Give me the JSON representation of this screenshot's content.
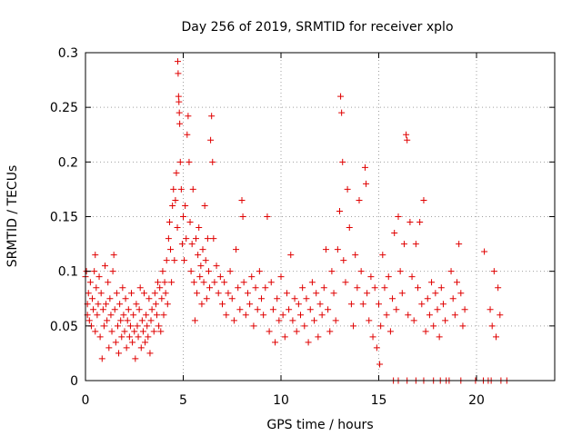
{
  "chart_data": {
    "type": "scatter",
    "title": "Day 256 of 2019, SRMTID for receiver xplo",
    "xlabel": "GPS time / hours",
    "ylabel": "SRMTID / TECUs",
    "xlim": [
      0,
      24
    ],
    "ylim": [
      0,
      0.3
    ],
    "xticks": [
      0,
      5,
      10,
      15,
      20
    ],
    "xtick_labels": [
      "0",
      "5",
      "10",
      "15",
      "20"
    ],
    "yticks": [
      0,
      0.05,
      0.1,
      0.15,
      0.2,
      0.25,
      0.3
    ],
    "ytick_labels": [
      "0",
      "0.05",
      "0.1",
      "0.15",
      "0.2",
      "0.25",
      "0.3"
    ],
    "grid": true,
    "legend": "none",
    "marker": "+",
    "color": "#e00000",
    "series": [
      {
        "points": [
          [
            0.0,
            0.095
          ],
          [
            0.05,
            0.1
          ],
          [
            0.1,
            0.07
          ],
          [
            0.1,
            0.06
          ],
          [
            0.15,
            0.08
          ],
          [
            0.2,
            0.055
          ],
          [
            0.25,
            0.09
          ],
          [
            0.3,
            0.05
          ],
          [
            0.35,
            0.075
          ],
          [
            0.4,
            0.065
          ],
          [
            0.45,
            0.1
          ],
          [
            0.5,
            0.115
          ],
          [
            0.5,
            0.045
          ],
          [
            0.55,
            0.085
          ],
          [
            0.6,
            0.06
          ],
          [
            0.65,
            0.07
          ],
          [
            0.7,
            0.095
          ],
          [
            0.75,
            0.04
          ],
          [
            0.8,
            0.08
          ],
          [
            0.85,
            0.02
          ],
          [
            0.9,
            0.065
          ],
          [
            0.95,
            0.05
          ],
          [
            1.0,
            0.105
          ],
          [
            1.05,
            0.07
          ],
          [
            1.1,
            0.055
          ],
          [
            1.15,
            0.09
          ],
          [
            1.2,
            0.03
          ],
          [
            1.25,
            0.075
          ],
          [
            1.3,
            0.06
          ],
          [
            1.35,
            0.045
          ],
          [
            1.4,
            0.1
          ],
          [
            1.45,
            0.115
          ],
          [
            1.5,
            0.065
          ],
          [
            1.55,
            0.035
          ],
          [
            1.6,
            0.08
          ],
          [
            1.65,
            0.05
          ],
          [
            1.7,
            0.025
          ],
          [
            1.75,
            0.07
          ],
          [
            1.8,
            0.055
          ],
          [
            1.85,
            0.04
          ],
          [
            1.9,
            0.085
          ],
          [
            1.95,
            0.06
          ],
          [
            2.0,
            0.045
          ],
          [
            2.05,
            0.075
          ],
          [
            2.1,
            0.03
          ],
          [
            2.15,
            0.055
          ],
          [
            2.2,
            0.065
          ],
          [
            2.25,
            0.04
          ],
          [
            2.3,
            0.05
          ],
          [
            2.35,
            0.08
          ],
          [
            2.4,
            0.035
          ],
          [
            2.45,
            0.06
          ],
          [
            2.5,
            0.045
          ],
          [
            2.55,
            0.02
          ],
          [
            2.6,
            0.07
          ],
          [
            2.65,
            0.05
          ],
          [
            2.7,
            0.04
          ],
          [
            2.75,
            0.065
          ],
          [
            2.8,
            0.085
          ],
          [
            2.85,
            0.03
          ],
          [
            2.9,
            0.055
          ],
          [
            2.95,
            0.045
          ],
          [
            3.0,
            0.08
          ],
          [
            3.05,
            0.035
          ],
          [
            3.1,
            0.06
          ],
          [
            3.15,
            0.05
          ],
          [
            3.2,
            0.04
          ],
          [
            3.25,
            0.075
          ],
          [
            3.3,
            0.025
          ],
          [
            3.35,
            0.055
          ],
          [
            3.4,
            0.065
          ],
          [
            3.5,
            0.045
          ],
          [
            3.55,
            0.08
          ],
          [
            3.6,
            0.07
          ],
          [
            3.65,
            0.06
          ],
          [
            3.7,
            0.09
          ],
          [
            3.75,
            0.05
          ],
          [
            3.8,
            0.085
          ],
          [
            3.85,
            0.045
          ],
          [
            3.9,
            0.075
          ],
          [
            3.95,
            0.1
          ],
          [
            4.0,
            0.06
          ],
          [
            4.05,
            0.09
          ],
          [
            4.1,
            0.08
          ],
          [
            4.15,
            0.11
          ],
          [
            4.2,
            0.07
          ],
          [
            4.25,
            0.13
          ],
          [
            4.3,
            0.145
          ],
          [
            4.35,
            0.12
          ],
          [
            4.4,
            0.09
          ],
          [
            4.45,
            0.16
          ],
          [
            4.5,
            0.175
          ],
          [
            4.55,
            0.11
          ],
          [
            4.6,
            0.165
          ],
          [
            4.65,
            0.19
          ],
          [
            4.7,
            0.14
          ],
          [
            4.72,
            0.292
          ],
          [
            4.74,
            0.281
          ],
          [
            4.76,
            0.26
          ],
          [
            4.78,
            0.255
          ],
          [
            4.8,
            0.245
          ],
          [
            4.82,
            0.235
          ],
          [
            4.85,
            0.2
          ],
          [
            4.9,
            0.175
          ],
          [
            4.95,
            0.125
          ],
          [
            5.0,
            0.15
          ],
          [
            5.05,
            0.11
          ],
          [
            5.1,
            0.16
          ],
          [
            5.15,
            0.13
          ],
          [
            5.2,
            0.225
          ],
          [
            5.25,
            0.242
          ],
          [
            5.3,
            0.2
          ],
          [
            5.35,
            0.145
          ],
          [
            5.4,
            0.1
          ],
          [
            5.45,
            0.125
          ],
          [
            5.5,
            0.175
          ],
          [
            5.55,
            0.09
          ],
          [
            5.6,
            0.055
          ],
          [
            5.65,
            0.13
          ],
          [
            5.7,
            0.08
          ],
          [
            5.75,
            0.115
          ],
          [
            5.8,
            0.14
          ],
          [
            5.85,
            0.095
          ],
          [
            5.9,
            0.105
          ],
          [
            5.95,
            0.07
          ],
          [
            6.0,
            0.12
          ],
          [
            6.05,
            0.09
          ],
          [
            6.1,
            0.16
          ],
          [
            6.15,
            0.11
          ],
          [
            6.2,
            0.075
          ],
          [
            6.25,
            0.13
          ],
          [
            6.3,
            0.1
          ],
          [
            6.35,
            0.085
          ],
          [
            6.4,
            0.22
          ],
          [
            6.45,
            0.242
          ],
          [
            6.5,
            0.2
          ],
          [
            6.55,
            0.13
          ],
          [
            6.6,
            0.09
          ],
          [
            6.7,
            0.105
          ],
          [
            6.8,
            0.08
          ],
          [
            6.9,
            0.095
          ],
          [
            7.0,
            0.07
          ],
          [
            7.1,
            0.09
          ],
          [
            7.2,
            0.06
          ],
          [
            7.3,
            0.08
          ],
          [
            7.4,
            0.1
          ],
          [
            7.5,
            0.075
          ],
          [
            7.6,
            0.055
          ],
          [
            7.7,
            0.12
          ],
          [
            7.8,
            0.085
          ],
          [
            7.9,
            0.065
          ],
          [
            8.0,
            0.165
          ],
          [
            8.05,
            0.15
          ],
          [
            8.1,
            0.09
          ],
          [
            8.2,
            0.06
          ],
          [
            8.3,
            0.08
          ],
          [
            8.4,
            0.07
          ],
          [
            8.5,
            0.095
          ],
          [
            8.6,
            0.05
          ],
          [
            8.7,
            0.085
          ],
          [
            8.8,
            0.065
          ],
          [
            8.9,
            0.1
          ],
          [
            9.0,
            0.075
          ],
          [
            9.1,
            0.06
          ],
          [
            9.2,
            0.085
          ],
          [
            9.3,
            0.15
          ],
          [
            9.4,
            0.045
          ],
          [
            9.5,
            0.09
          ],
          [
            9.6,
            0.065
          ],
          [
            9.7,
            0.035
          ],
          [
            9.8,
            0.075
          ],
          [
            9.9,
            0.055
          ],
          [
            10.0,
            0.095
          ],
          [
            10.1,
            0.06
          ],
          [
            10.2,
            0.04
          ],
          [
            10.3,
            0.08
          ],
          [
            10.4,
            0.065
          ],
          [
            10.5,
            0.115
          ],
          [
            10.6,
            0.055
          ],
          [
            10.7,
            0.075
          ],
          [
            10.8,
            0.045
          ],
          [
            10.9,
            0.07
          ],
          [
            11.0,
            0.06
          ],
          [
            11.1,
            0.085
          ],
          [
            11.2,
            0.05
          ],
          [
            11.3,
            0.075
          ],
          [
            11.4,
            0.035
          ],
          [
            11.5,
            0.065
          ],
          [
            11.6,
            0.09
          ],
          [
            11.7,
            0.055
          ],
          [
            11.8,
            0.08
          ],
          [
            11.9,
            0.04
          ],
          [
            12.0,
            0.07
          ],
          [
            12.1,
            0.06
          ],
          [
            12.2,
            0.085
          ],
          [
            12.3,
            0.12
          ],
          [
            12.4,
            0.065
          ],
          [
            12.5,
            0.045
          ],
          [
            12.6,
            0.1
          ],
          [
            12.7,
            0.08
          ],
          [
            12.8,
            0.055
          ],
          [
            12.9,
            0.12
          ],
          [
            13.0,
            0.155
          ],
          [
            13.05,
            0.26
          ],
          [
            13.1,
            0.245
          ],
          [
            13.15,
            0.2
          ],
          [
            13.2,
            0.11
          ],
          [
            13.3,
            0.09
          ],
          [
            13.4,
            0.175
          ],
          [
            13.5,
            0.14
          ],
          [
            13.6,
            0.07
          ],
          [
            13.7,
            0.05
          ],
          [
            13.8,
            0.115
          ],
          [
            13.9,
            0.085
          ],
          [
            14.0,
            0.165
          ],
          [
            14.1,
            0.1
          ],
          [
            14.2,
            0.07
          ],
          [
            14.3,
            0.195
          ],
          [
            14.35,
            0.18
          ],
          [
            14.4,
            0.08
          ],
          [
            14.5,
            0.055
          ],
          [
            14.6,
            0.095
          ],
          [
            14.7,
            0.04
          ],
          [
            14.8,
            0.085
          ],
          [
            14.9,
            0.03
          ],
          [
            15.0,
            0.07
          ],
          [
            15.05,
            0.015
          ],
          [
            15.1,
            0.05
          ],
          [
            15.2,
            0.115
          ],
          [
            15.3,
            0.085
          ],
          [
            15.4,
            0.06
          ],
          [
            15.5,
            0.095
          ],
          [
            15.6,
            0.045
          ],
          [
            15.7,
            0.075
          ],
          [
            15.8,
            0.135
          ],
          [
            15.9,
            0.065
          ],
          [
            16.0,
            0.15
          ],
          [
            16.1,
            0.1
          ],
          [
            16.2,
            0.08
          ],
          [
            16.3,
            0.125
          ],
          [
            16.4,
            0.225
          ],
          [
            16.45,
            0.22
          ],
          [
            16.5,
            0.06
          ],
          [
            16.6,
            0.145
          ],
          [
            16.7,
            0.095
          ],
          [
            16.8,
            0.055
          ],
          [
            16.9,
            0.125
          ],
          [
            17.0,
            0.085
          ],
          [
            17.1,
            0.145
          ],
          [
            17.2,
            0.07
          ],
          [
            17.3,
            0.165
          ],
          [
            17.4,
            0.045
          ],
          [
            17.5,
            0.075
          ],
          [
            17.6,
            0.06
          ],
          [
            17.7,
            0.09
          ],
          [
            17.8,
            0.05
          ],
          [
            17.9,
            0.08
          ],
          [
            18.0,
            0.065
          ],
          [
            18.1,
            0.04
          ],
          [
            18.2,
            0.085
          ],
          [
            18.3,
            0.07
          ],
          [
            18.4,
            0.055
          ],
          [
            18.7,
            0.1
          ],
          [
            18.8,
            0.075
          ],
          [
            18.9,
            0.06
          ],
          [
            19.0,
            0.09
          ],
          [
            19.1,
            0.125
          ],
          [
            19.2,
            0.08
          ],
          [
            19.3,
            0.05
          ],
          [
            19.4,
            0.065
          ],
          [
            20.4,
            0.118
          ],
          [
            20.7,
            0.065
          ],
          [
            20.8,
            0.05
          ],
          [
            20.9,
            0.1
          ],
          [
            21.0,
            0.04
          ],
          [
            21.1,
            0.085
          ],
          [
            21.2,
            0.06
          ],
          [
            15.75,
            0.0
          ],
          [
            16.0,
            0.0
          ],
          [
            16.45,
            0.0
          ],
          [
            16.9,
            0.0
          ],
          [
            17.3,
            0.0
          ],
          [
            17.8,
            0.0
          ],
          [
            18.15,
            0.0
          ],
          [
            18.45,
            0.0
          ],
          [
            18.6,
            0.0
          ],
          [
            19.2,
            0.0
          ],
          [
            19.95,
            0.0
          ],
          [
            20.35,
            0.0
          ],
          [
            20.6,
            0.0
          ],
          [
            20.75,
            0.0
          ],
          [
            21.25,
            0.0
          ],
          [
            21.55,
            0.0
          ]
        ]
      }
    ]
  }
}
